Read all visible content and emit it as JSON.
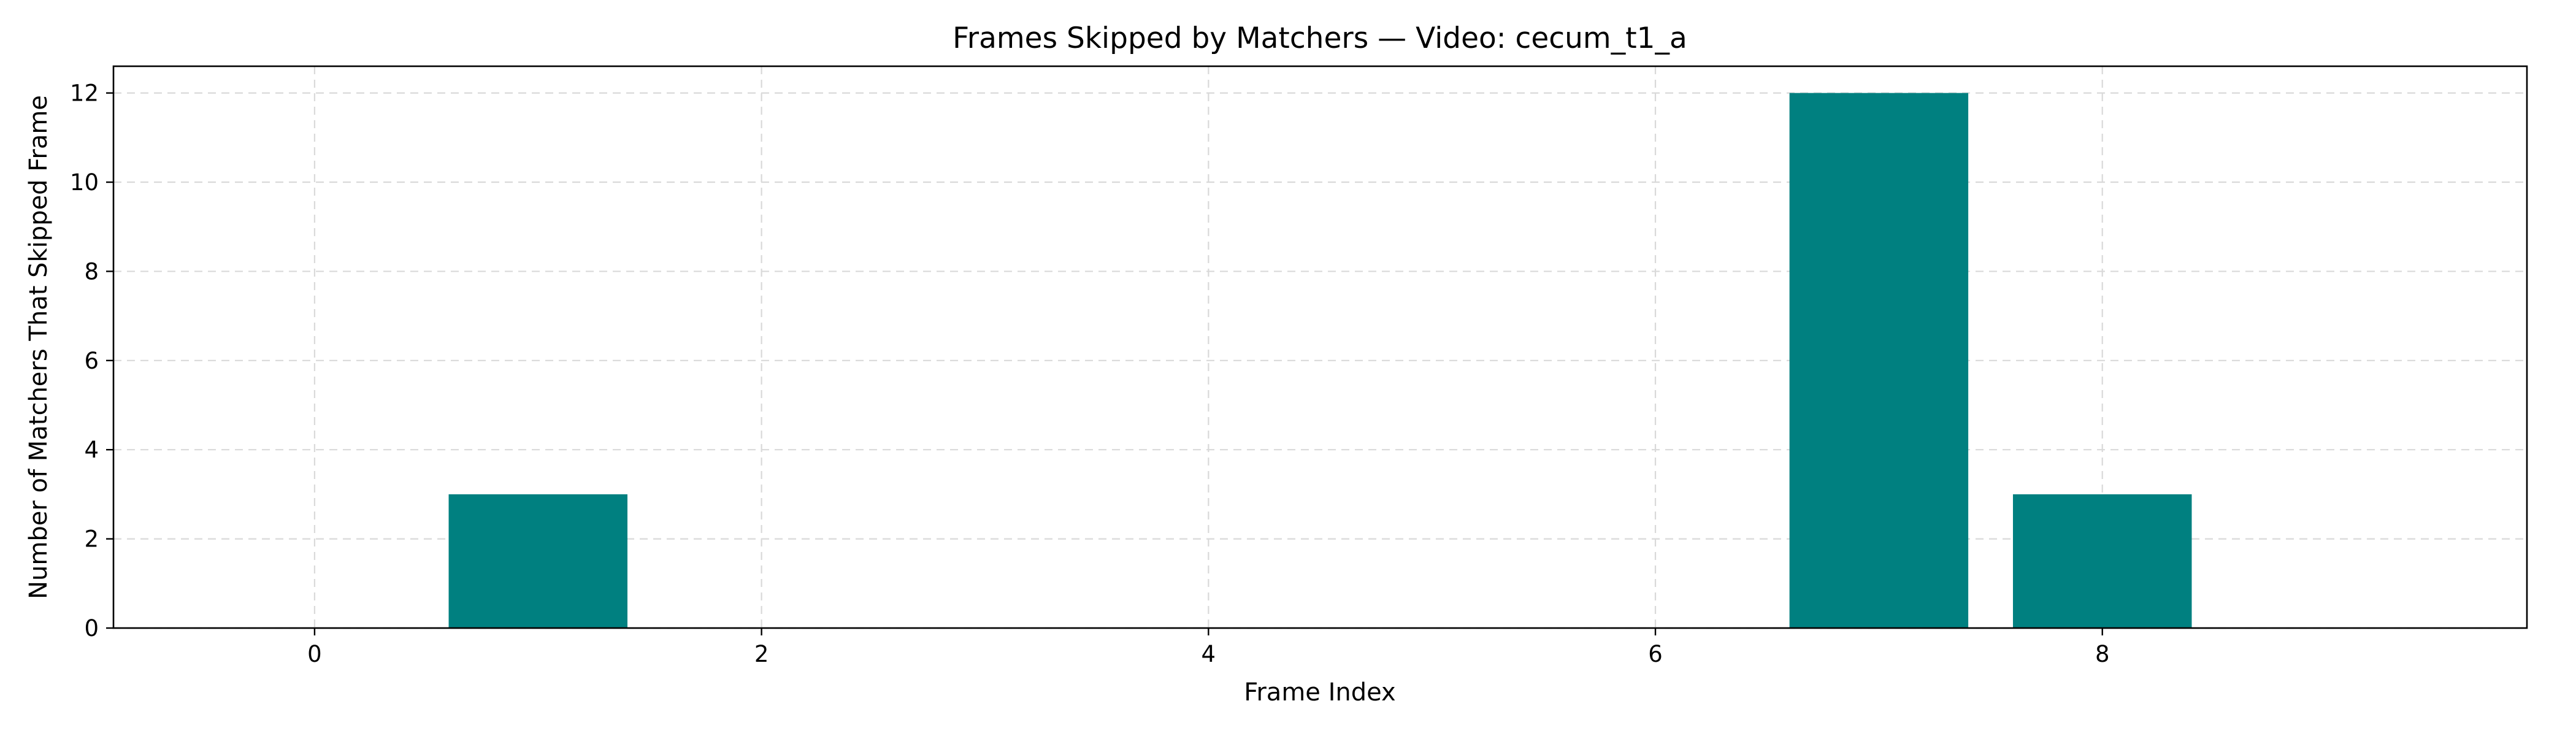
{
  "chart_data": {
    "type": "bar",
    "title": "Frames Skipped by Matchers — Video: cecum_t1_a",
    "xlabel": "Frame Index",
    "ylabel": "Number of Matchers That Skipped Frame",
    "x": [
      1,
      7,
      8
    ],
    "values": [
      3,
      12,
      3
    ],
    "bar_width": 0.8,
    "xlim": [
      -0.9,
      9.9
    ],
    "ylim": [
      0,
      12.6
    ],
    "xticks": [
      0,
      2,
      4,
      6,
      8
    ],
    "yticks": [
      0,
      2,
      4,
      6,
      8,
      10,
      12
    ],
    "grid": true,
    "bar_color": "#008080"
  }
}
